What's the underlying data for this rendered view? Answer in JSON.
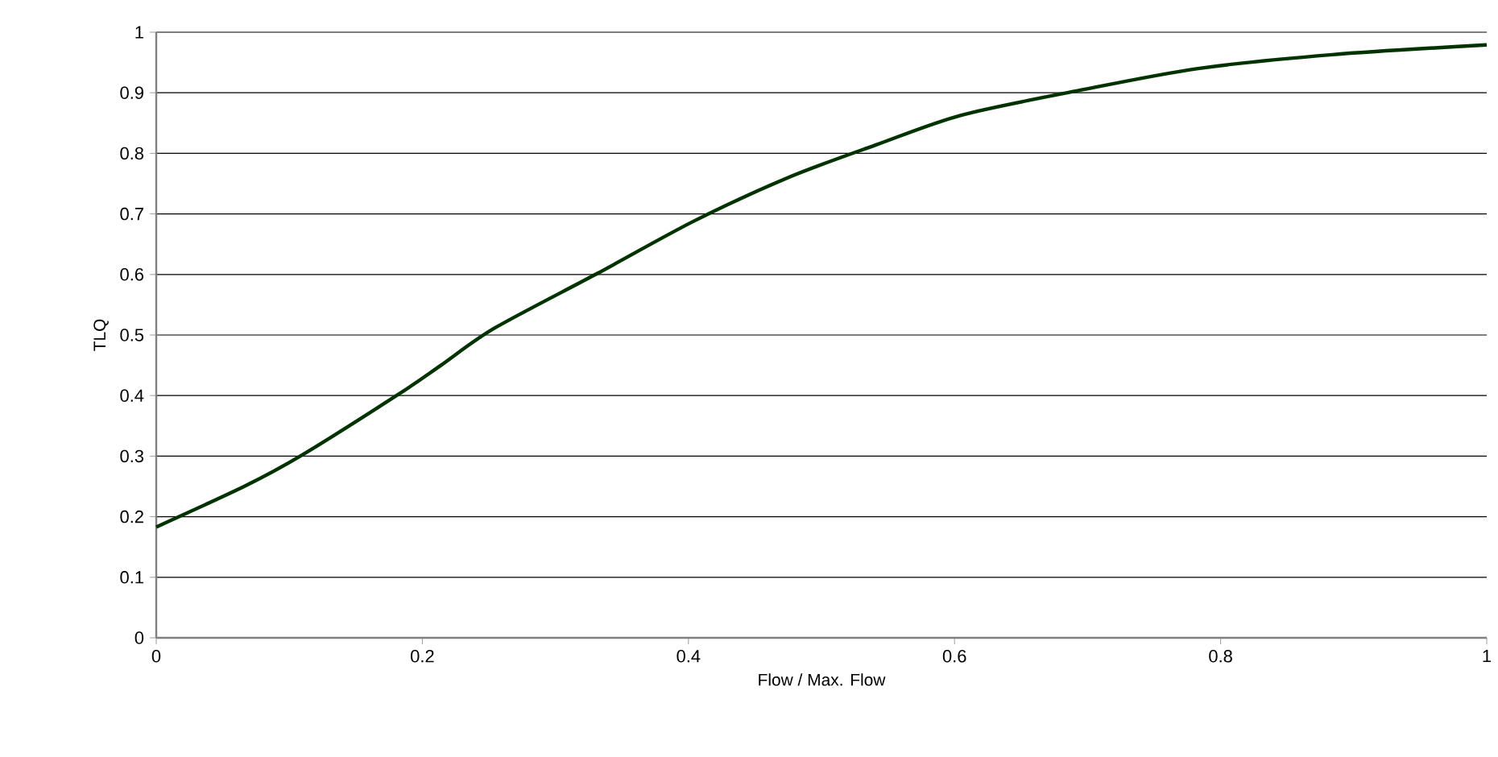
{
  "chart_data": {
    "type": "line",
    "xlabel": "Flow / Max. Flow",
    "ylabel": "TLQ",
    "x": [
      0,
      0.067,
      0.109,
      0.182,
      0.214,
      0.254,
      0.331,
      0.404,
      0.476,
      0.541,
      0.605,
      0.694,
      0.783,
      0.884,
      1.0
    ],
    "series": [
      {
        "color": "#003300",
        "values": [
          0.183,
          0.251,
          0.301,
          0.402,
          0.45,
          0.511,
          0.601,
          0.688,
          0.761,
          0.814,
          0.863,
          0.904,
          0.94,
          0.963,
          0.979
        ]
      }
    ],
    "xlim": [
      0,
      1
    ],
    "ylim": [
      0,
      1
    ],
    "xticks": [
      0,
      0.2,
      0.4,
      0.6,
      0.8,
      1
    ],
    "yticks": [
      0,
      0.1,
      0.2,
      0.3,
      0.4,
      0.5,
      0.6,
      0.7,
      0.8,
      0.9,
      1
    ],
    "grid": "y",
    "marker": "none",
    "line_style": "solid"
  }
}
